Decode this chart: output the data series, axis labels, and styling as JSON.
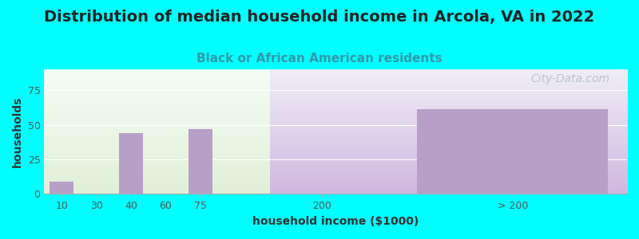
{
  "title": "Distribution of median household income in Arcola, VA in 2022",
  "subtitle": "Black or African American residents",
  "xlabel": "household income ($1000)",
  "ylabel": "households",
  "background_outer": "#00FFFF",
  "bar_color": "#b89fc8",
  "bar_color_right": "#c0a8d8",
  "bg_left_bottom": "#e0f0d8",
  "bg_left_top": "#f0faf0",
  "bg_right_color": "#e8e0f0",
  "watermark": "City-Data.com",
  "categories": [
    "10",
    "30",
    "40",
    "60",
    "75",
    "200",
    "> 200"
  ],
  "values": [
    9,
    0,
    44,
    0,
    47,
    0,
    61
  ],
  "yticks": [
    0,
    25,
    50,
    75
  ],
  "ylim": [
    0,
    90
  ],
  "title_fontsize": 14,
  "subtitle_fontsize": 11,
  "axis_label_fontsize": 10,
  "tick_fontsize": 9,
  "watermark_color": "#b0bec8",
  "watermark_fontsize": 10
}
